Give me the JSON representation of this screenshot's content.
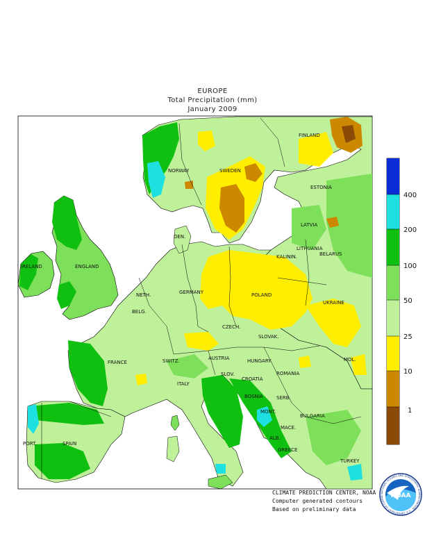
{
  "header": {
    "region": "EUROPE",
    "variable": "Total Precipitation (mm)",
    "period": "January 2009"
  },
  "colors": {
    "gt400": "#0a2dd6",
    "200_400": "#1fe0e0",
    "100_200": "#10c010",
    "50_100": "#7ee05a",
    "25_50": "#bff09a",
    "10_25": "#ffee00",
    "1_10": "#cc8800",
    "lt1": "#8a4a08",
    "water": "#ffffff",
    "outline": "#000000"
  },
  "legend": {
    "levels": [
      "400",
      "200",
      "100",
      "50",
      "25",
      "10",
      "1"
    ]
  },
  "country_labels": {
    "finland": "FINLAND",
    "norway": "NORWAY",
    "sweden": "SWEDEN",
    "estonia": "ESTONIA",
    "latvia": "LATVIA",
    "denmark": "DEN.",
    "lithuania": "LITHUANIA",
    "kaliningrad": "KALININ.",
    "belarus": "BELARUS",
    "ireland": "IRELAND",
    "england": "ENGLAND",
    "netherlands": "NETH.",
    "germany": "GERMANY",
    "poland": "POLAND",
    "belgium": "BELG.",
    "czech": "CZECH.",
    "ukraine": "UKRAINE",
    "slovakia": "SLOVAK.",
    "france": "FRANCE",
    "switzerland": "SWITZ.",
    "austria": "AUSTRIA",
    "hungary": "HUNGARY",
    "moldova": "MOL.",
    "slovenia": "SLOV.",
    "croatia": "CROATIA",
    "romania": "ROMANIA",
    "italy": "ITALY",
    "bosnia": "BOSNIA",
    "serbia": "SERB.",
    "bulgaria": "BULGARIA",
    "montenegro": "MONT.",
    "macedonia": "MACE.",
    "portugal": "PORT.",
    "spain": "SPAIN",
    "albania": "ALB.",
    "greece": "GREECE",
    "turkey": "TURKEY"
  },
  "credits": {
    "line1": "CLIMATE PREDICTION CENTER, NOAA",
    "line2": "Computer generated contours",
    "line3": "Based on preliminary data"
  },
  "logo": {
    "text": "NOAA",
    "ring_text": "NATIONAL OCEANIC AND ATMOSPHERIC ADMINISTRATION · U.S. DEPARTMENT OF COMMERCE"
  }
}
